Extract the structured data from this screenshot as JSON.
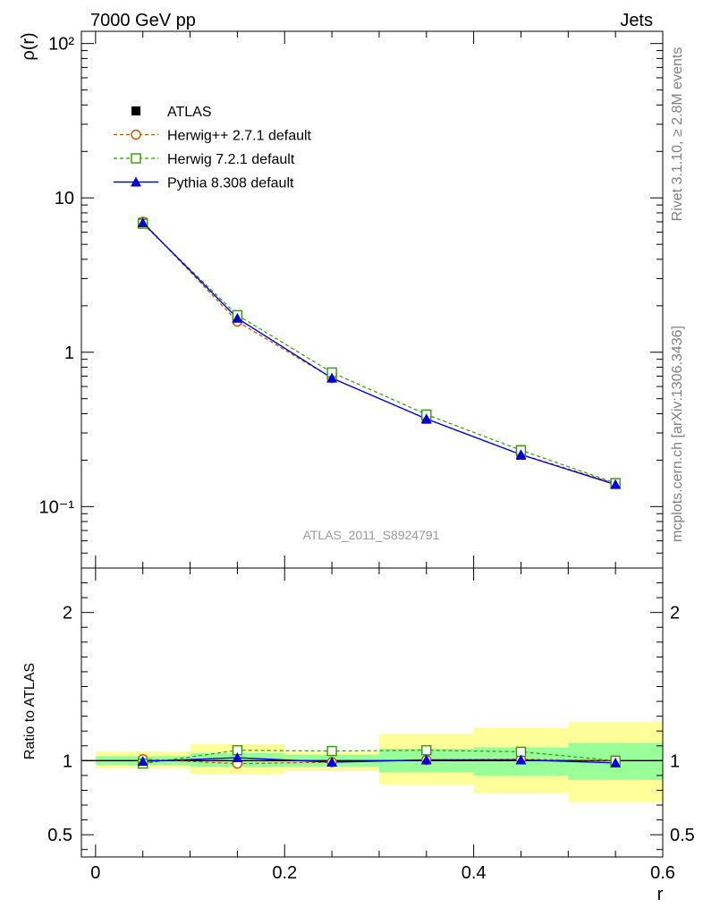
{
  "header": {
    "energy_label": "7000 GeV pp",
    "process_label": "Jets",
    "analysis_label": "ATLAS_2011_S8924791",
    "rivet_label": "Rivet 3.1.10, ≥ 2.8M events",
    "source_label": "mcplots.cern.ch [arXiv:1306.3436]"
  },
  "chart_data": [
    {
      "type": "line",
      "panel": "main",
      "ylabel": "ρ(r)",
      "yscale": "log",
      "ylim": [
        0.04,
        120
      ],
      "xlim": [
        -0.015,
        0.6
      ],
      "x": [
        0.05,
        0.15,
        0.25,
        0.35,
        0.45,
        0.55
      ],
      "ytick_labels": [
        "10⁻¹",
        "1",
        "10",
        "10²"
      ],
      "legend_position": "top-left",
      "series": [
        {
          "name": "ATLAS",
          "color": "#000000",
          "marker": "filled-square",
          "values": [
            6.95,
            1.62,
            0.69,
            0.368,
            0.215,
            0.141
          ]
        },
        {
          "name": "Herwig++ 2.7.1 default",
          "color": "#b35900",
          "marker": "open-circle",
          "dash": true,
          "values": [
            7.0,
            1.58,
            0.68,
            0.37,
            0.218,
            0.141
          ]
        },
        {
          "name": "Herwig 7.2.1 default",
          "color": "#339900",
          "marker": "open-square",
          "dash": true,
          "values": [
            6.8,
            1.74,
            0.74,
            0.395,
            0.232,
            0.142
          ]
        },
        {
          "name": "Pythia 8.308 default",
          "color": "#0000dd",
          "marker": "filled-triangle",
          "dash": false,
          "values": [
            6.9,
            1.66,
            0.68,
            0.37,
            0.217,
            0.139
          ]
        }
      ]
    },
    {
      "type": "line",
      "panel": "ratio",
      "ylabel": "Ratio to ATLAS",
      "xlabel": "r",
      "ylim": [
        0.35,
        2.3
      ],
      "xlim": [
        -0.015,
        0.6
      ],
      "x": [
        0.05,
        0.15,
        0.25,
        0.35,
        0.45,
        0.55
      ],
      "bin_edges": [
        0.0,
        0.1,
        0.2,
        0.3,
        0.4,
        0.5,
        0.6
      ],
      "xtick_labels": [
        "0",
        "0.2",
        "0.4",
        "0.6"
      ],
      "ytick_labels": [
        "0.5",
        "1",
        "2"
      ],
      "band_colors": {
        "inner": "#99ff99",
        "outer": "#ffff99"
      },
      "inner_band": [
        [
          0.97,
          1.03
        ],
        [
          0.96,
          1.05
        ],
        [
          0.96,
          1.04
        ],
        [
          0.92,
          1.08
        ],
        [
          0.9,
          1.09
        ],
        [
          0.87,
          1.12
        ]
      ],
      "outer_band": [
        [
          0.95,
          1.06
        ],
        [
          0.91,
          1.11
        ],
        [
          0.93,
          1.06
        ],
        [
          0.84,
          1.18
        ],
        [
          0.78,
          1.22
        ],
        [
          0.72,
          1.26
        ]
      ],
      "series": [
        {
          "name": "Herwig++ 2.7.1 default",
          "color": "#b35900",
          "marker": "open-circle",
          "dash": true,
          "values": [
            1.01,
            0.98,
            0.99,
            1.005,
            1.01,
            1.0
          ]
        },
        {
          "name": "Herwig 7.2.1 default",
          "color": "#339900",
          "marker": "open-square",
          "dash": true,
          "values": [
            0.98,
            1.07,
            1.065,
            1.07,
            1.06,
            1.0
          ]
        },
        {
          "name": "Pythia 8.308 default",
          "color": "#0000dd",
          "marker": "filled-triangle",
          "dash": false,
          "values": [
            0.995,
            1.02,
            0.99,
            1.005,
            1.005,
            0.985
          ]
        }
      ]
    }
  ]
}
